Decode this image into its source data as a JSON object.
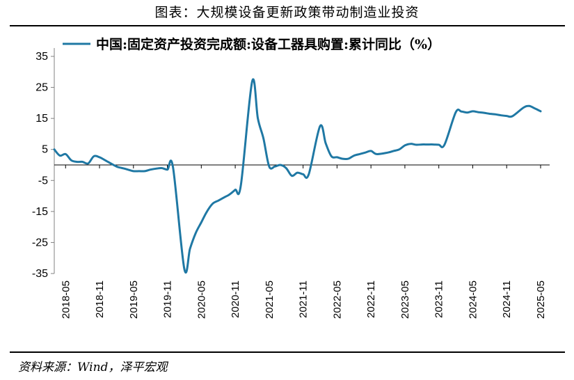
{
  "figure_title": "图表：大规模设备更新政策带动制造业投资",
  "source": "资料来源：Wind，泽平宏观",
  "colors": {
    "series": "#1f78a4",
    "axis": "#808080",
    "zero_line": "#000000"
  },
  "chart_data": {
    "type": "line",
    "title": "",
    "xlabel": "",
    "ylabel": "",
    "ylim": [
      -35,
      35
    ],
    "yticks": [
      35,
      25,
      15,
      5,
      -5,
      -15,
      -25,
      -35
    ],
    "x_tick_labels": [
      "2018-05",
      "2018-11",
      "2019-05",
      "2019-11",
      "2020-05",
      "2020-11",
      "2021-05",
      "2021-11",
      "2022-05",
      "2022-11",
      "2023-05",
      "2023-11",
      "2024-05",
      "2024-11",
      "2025-05"
    ],
    "legend_position": "top",
    "grid": false,
    "series": [
      {
        "name": "中国:固定资产投资完成额:设备工器具购置:累计同比（%）",
        "points": [
          [
            "2018-03",
            5.0
          ],
          [
            "2018-04",
            3.0
          ],
          [
            "2018-05",
            3.5
          ],
          [
            "2018-06",
            1.5
          ],
          [
            "2018-07",
            1.0
          ],
          [
            "2018-08",
            1.0
          ],
          [
            "2018-09",
            0.5
          ],
          [
            "2018-10",
            2.8
          ],
          [
            "2018-11",
            2.5
          ],
          [
            "2018-12",
            1.5
          ],
          [
            "2019-02",
            -0.5
          ],
          [
            "2019-03",
            -1.0
          ],
          [
            "2019-04",
            -1.5
          ],
          [
            "2019-05",
            -2.0
          ],
          [
            "2019-06",
            -2.0
          ],
          [
            "2019-07",
            -2.0
          ],
          [
            "2019-08",
            -1.5
          ],
          [
            "2019-09",
            -1.2
          ],
          [
            "2019-10",
            -1.0
          ],
          [
            "2019-11",
            -1.5
          ],
          [
            "2019-12",
            -0.8
          ],
          [
            "2020-02",
            -33.5
          ],
          [
            "2020-03",
            -27.0
          ],
          [
            "2020-04",
            -22.0
          ],
          [
            "2020-05",
            -18.5
          ],
          [
            "2020-06",
            -15.0
          ],
          [
            "2020-07",
            -12.5
          ],
          [
            "2020-08",
            -11.5
          ],
          [
            "2020-09",
            -10.5
          ],
          [
            "2020-10",
            -9.5
          ],
          [
            "2020-11",
            -8.0
          ],
          [
            "2020-12",
            -6.5
          ],
          [
            "2021-02",
            27.0
          ],
          [
            "2021-03",
            15.0
          ],
          [
            "2021-04",
            8.5
          ],
          [
            "2021-05",
            -0.5
          ],
          [
            "2021-06",
            -0.5
          ],
          [
            "2021-07",
            0.0
          ],
          [
            "2021-08",
            -1.0
          ],
          [
            "2021-09",
            -3.5
          ],
          [
            "2021-10",
            -2.5
          ],
          [
            "2021-11",
            -3.0
          ],
          [
            "2021-12",
            -3.0
          ],
          [
            "2022-02",
            12.5
          ],
          [
            "2022-03",
            7.0
          ],
          [
            "2022-04",
            2.8
          ],
          [
            "2022-05",
            2.5
          ],
          [
            "2022-06",
            2.0
          ],
          [
            "2022-07",
            2.0
          ],
          [
            "2022-08",
            3.0
          ],
          [
            "2022-09",
            3.5
          ],
          [
            "2022-10",
            4.0
          ],
          [
            "2022-11",
            4.5
          ],
          [
            "2022-12",
            3.5
          ],
          [
            "2023-02",
            4.0
          ],
          [
            "2023-03",
            4.5
          ],
          [
            "2023-04",
            5.0
          ],
          [
            "2023-05",
            6.3
          ],
          [
            "2023-06",
            6.8
          ],
          [
            "2023-07",
            6.5
          ],
          [
            "2023-08",
            6.6
          ],
          [
            "2023-09",
            6.6
          ],
          [
            "2023-10",
            6.6
          ],
          [
            "2023-11",
            6.5
          ],
          [
            "2023-12",
            6.5
          ],
          [
            "2024-02",
            17.0
          ],
          [
            "2024-03",
            17.2
          ],
          [
            "2024-04",
            16.9
          ],
          [
            "2024-05",
            17.3
          ],
          [
            "2024-06",
            17.0
          ],
          [
            "2024-07",
            16.8
          ],
          [
            "2024-08",
            16.5
          ],
          [
            "2024-09",
            16.3
          ],
          [
            "2024-10",
            16.0
          ],
          [
            "2024-11",
            15.8
          ],
          [
            "2024-12",
            15.7
          ],
          [
            "2025-02",
            18.5
          ],
          [
            "2025-03",
            19.0
          ],
          [
            "2025-04",
            18.2
          ],
          [
            "2025-05",
            17.3
          ]
        ]
      }
    ]
  }
}
